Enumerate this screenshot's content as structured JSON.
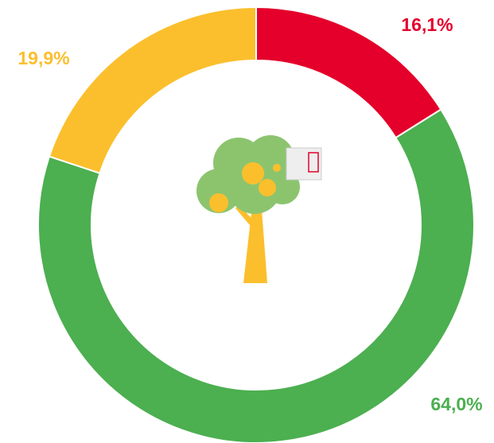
{
  "chart_data": {
    "type": "donut",
    "categories": [
      null,
      null,
      null
    ],
    "values": [
      16.1,
      64.0,
      19.9
    ],
    "value_labels": [
      "16,1%",
      "64,0%",
      "19,9%"
    ],
    "colors": [
      "#e4002b",
      "#4caf50",
      "#fbbf2d"
    ]
  }
}
